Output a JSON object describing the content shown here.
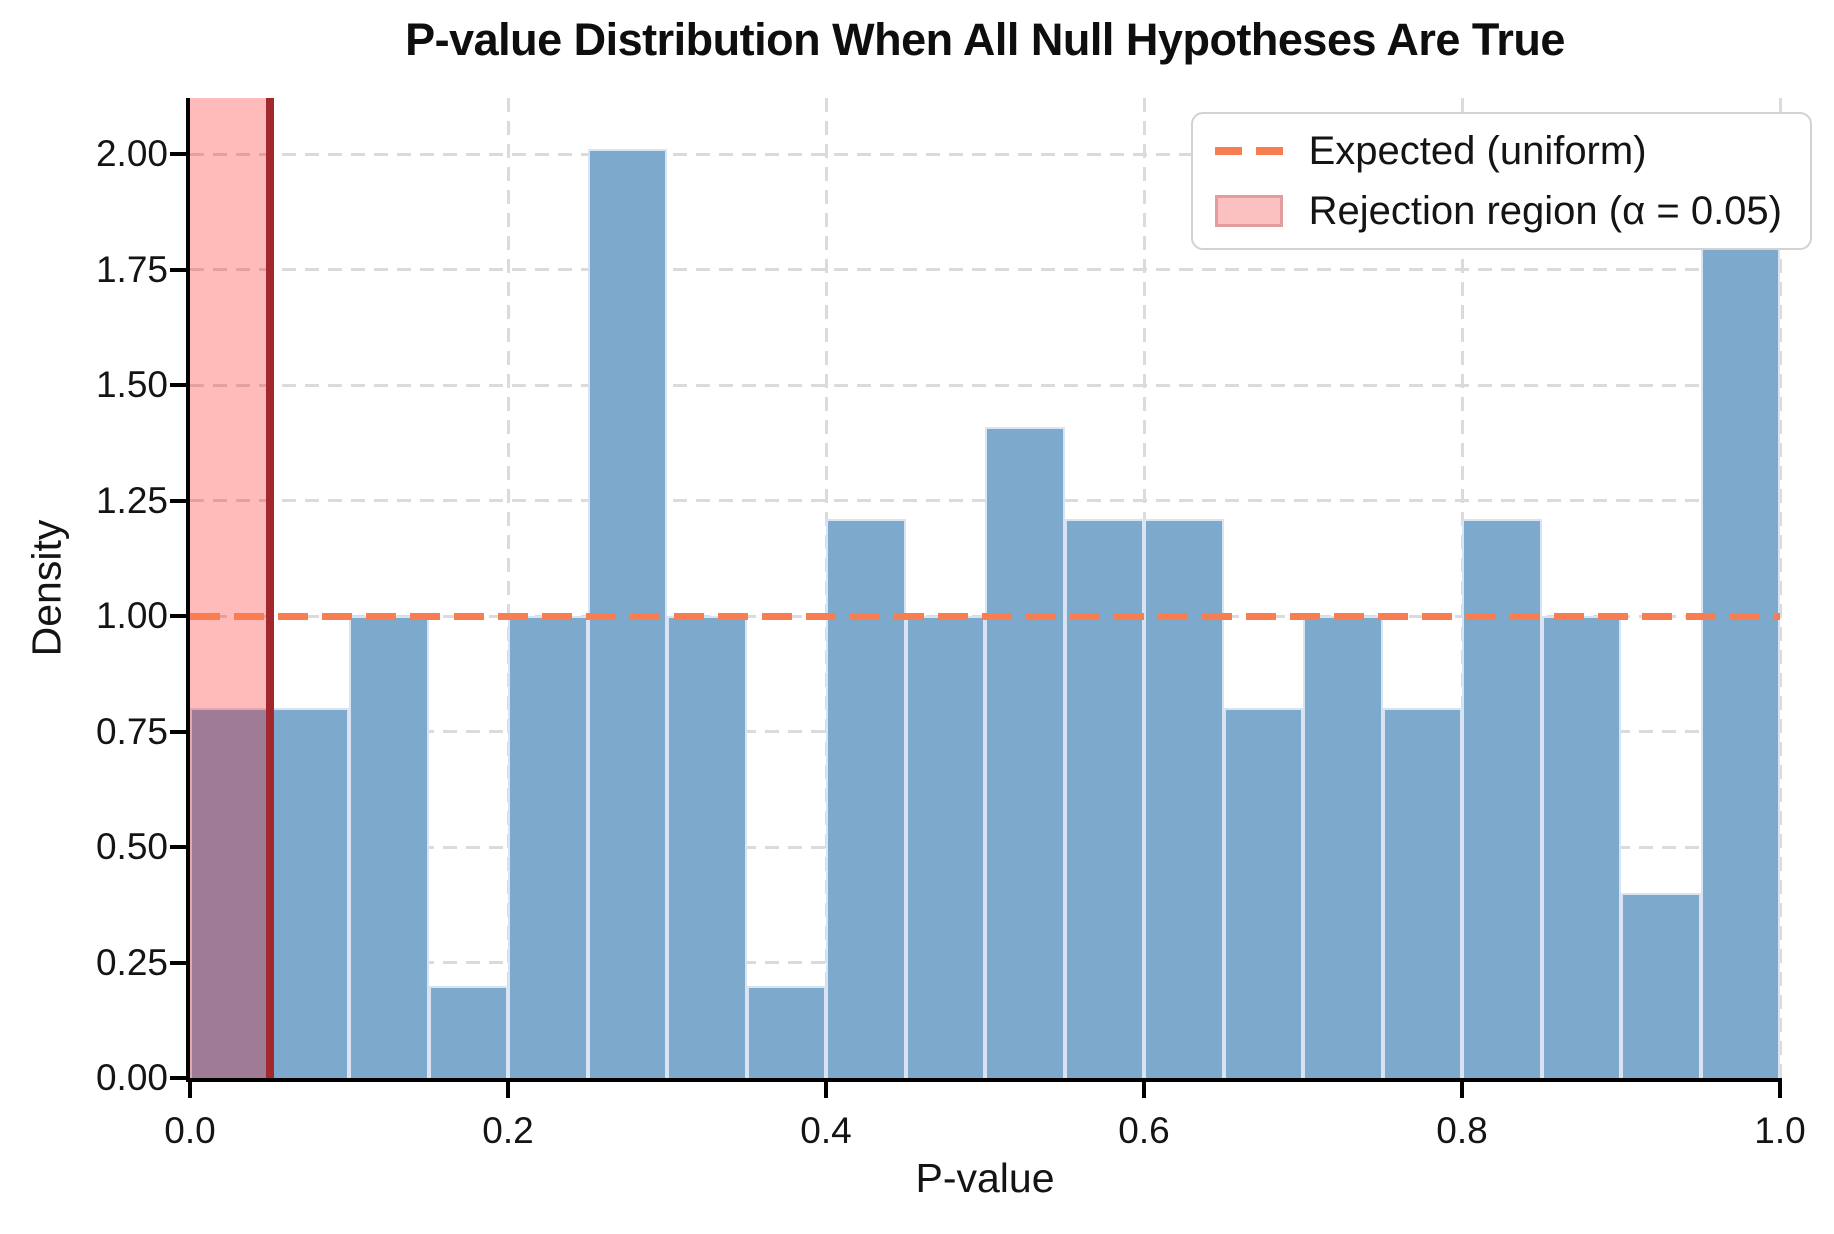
{
  "title": "P-value Distribution When All Null Hypotheses Are True",
  "chart_data": {
    "type": "bar",
    "subtype": "histogram",
    "title": "P-value Distribution When All Null Hypotheses Are True",
    "xlabel": "P-value",
    "ylabel": "Density",
    "xlim": [
      0.0,
      1.0
    ],
    "ylim": [
      0.0,
      2.12
    ],
    "grid": true,
    "bin_width": 0.05,
    "bin_edges": [
      0.0,
      0.05,
      0.1,
      0.15,
      0.2,
      0.25,
      0.3,
      0.35,
      0.4,
      0.45,
      0.5,
      0.55,
      0.6,
      0.65,
      0.7,
      0.75,
      0.8,
      0.85,
      0.9,
      0.95,
      1.0
    ],
    "values": [
      0.8,
      0.8,
      1.0,
      0.2,
      1.0,
      2.01,
      1.0,
      0.2,
      1.21,
      1.0,
      1.41,
      1.21,
      1.21,
      0.8,
      1.0,
      0.8,
      1.21,
      1.0,
      0.4,
      1.81
    ],
    "x_ticks": [
      "0.0",
      "0.2",
      "0.4",
      "0.6",
      "0.8",
      "1.0"
    ],
    "y_ticks": [
      "0.00",
      "0.25",
      "0.50",
      "0.75",
      "1.00",
      "1.25",
      "1.50",
      "1.75",
      "2.00"
    ],
    "expected_line": {
      "y": 1.0,
      "style": "dashed",
      "color": "#F87D51"
    },
    "rejection_region": {
      "x_start": 0.0,
      "x_end": 0.05,
      "alpha_level": "0.05"
    },
    "legend_position": "upper right",
    "legend": [
      {
        "label": "Expected (uniform)",
        "swatch": "dashed-line"
      },
      {
        "label": "Rejection region (α = 0.05)",
        "swatch": "patch"
      }
    ]
  },
  "colors": {
    "bar_fill": "#7DA9CC",
    "bar_edge": "#D8E4F1",
    "expected_line": "#F87D51",
    "rejection_fill": "rgba(255,0,0,0.27)",
    "rejection_line": "#A2282D",
    "gridline": "#DBDBDB",
    "spine": "#000000"
  }
}
